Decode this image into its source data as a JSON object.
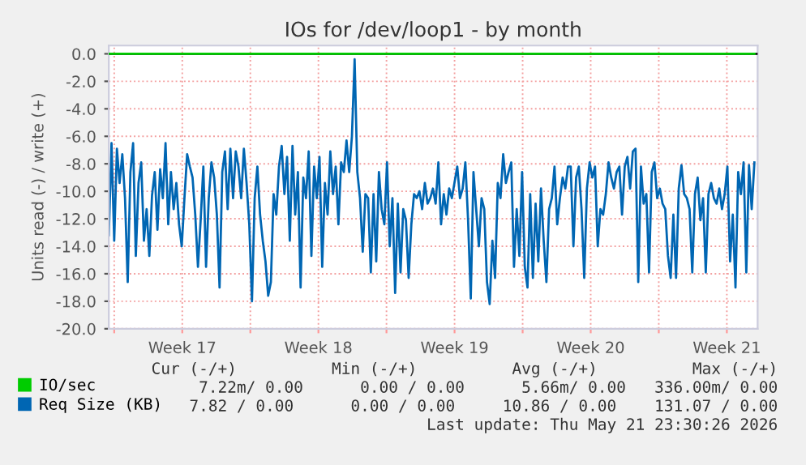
{
  "chart_data": {
    "type": "line",
    "title": "IOs for /dev/loop1 - by month",
    "ylabel": "Units read (-) / write (+)",
    "x": [
      "2026-04-18T17:20",
      "2026-04-18T20:40",
      "2026-04-19T00:00",
      "2026-04-19T03:20",
      "2026-04-19T06:40",
      "2026-04-19T10:00",
      "2026-04-19T13:20",
      "2026-04-19T16:40",
      "2026-04-19T20:00",
      "2026-04-19T23:20",
      "2026-04-20T02:40",
      "2026-04-20T06:00",
      "2026-04-20T09:20",
      "2026-04-20T12:40",
      "2026-04-20T16:00",
      "2026-04-20T19:20",
      "2026-04-20T22:40",
      "2026-04-21T02:00",
      "2026-04-21T05:20",
      "2026-04-21T08:40",
      "2026-04-21T12:00",
      "2026-04-21T15:20",
      "2026-04-21T18:40",
      "2026-04-21T22:00",
      "2026-04-22T01:20",
      "2026-04-22T04:40",
      "2026-04-22T08:00",
      "2026-04-22T11:20",
      "2026-04-22T14:40",
      "2026-04-22T18:00",
      "2026-04-22T21:20",
      "2026-04-23T00:40",
      "2026-04-23T04:00",
      "2026-04-23T07:20",
      "2026-04-23T10:40",
      "2026-04-23T14:00",
      "2026-04-23T17:20",
      "2026-04-23T20:40",
      "2026-04-24T00:00",
      "2026-04-24T03:20",
      "2026-04-24T06:40",
      "2026-04-24T10:00",
      "2026-04-24T13:20",
      "2026-04-24T16:40",
      "2026-04-24T20:00",
      "2026-04-24T23:20",
      "2026-04-25T02:40",
      "2026-04-25T06:00",
      "2026-04-25T09:20",
      "2026-04-25T12:40",
      "2026-04-25T16:00",
      "2026-04-25T19:20",
      "2026-04-25T22:40",
      "2026-04-26T02:00",
      "2026-04-26T05:20",
      "2026-04-26T08:40",
      "2026-04-26T12:00",
      "2026-04-26T15:20",
      "2026-04-26T18:40",
      "2026-04-26T22:00",
      "2026-04-27T01:20",
      "2026-04-27T04:40",
      "2026-04-27T08:00",
      "2026-04-27T11:20",
      "2026-04-27T14:40",
      "2026-04-27T18:00",
      "2026-04-27T21:20",
      "2026-04-28T00:40",
      "2026-04-28T04:00",
      "2026-04-28T07:20",
      "2026-04-28T10:40",
      "2026-04-28T14:00",
      "2026-04-28T17:20",
      "2026-04-28T20:40",
      "2026-04-29T00:00",
      "2026-04-29T03:20",
      "2026-04-29T06:40",
      "2026-04-29T10:00",
      "2026-04-29T13:20",
      "2026-04-29T16:40",
      "2026-04-29T20:00",
      "2026-04-29T23:20",
      "2026-04-30T02:40",
      "2026-04-30T06:00",
      "2026-04-30T09:20",
      "2026-04-30T12:40",
      "2026-04-30T16:00",
      "2026-04-30T19:20",
      "2026-04-30T22:40",
      "2026-05-01T02:00",
      "2026-05-01T05:20",
      "2026-05-01T08:40",
      "2026-05-01T12:00",
      "2026-05-01T15:20",
      "2026-05-01T18:40",
      "2026-05-01T22:00",
      "2026-05-02T01:20",
      "2026-05-02T04:40",
      "2026-05-02T08:00",
      "2026-05-02T11:20",
      "2026-05-02T14:40",
      "2026-05-02T18:00",
      "2026-05-02T21:20",
      "2026-05-03T00:40",
      "2026-05-03T04:00",
      "2026-05-03T07:20",
      "2026-05-03T10:40",
      "2026-05-03T14:00",
      "2026-05-03T17:20",
      "2026-05-03T20:40",
      "2026-05-04T00:00",
      "2026-05-04T03:20",
      "2026-05-04T06:40",
      "2026-05-04T10:00",
      "2026-05-04T13:20",
      "2026-05-04T16:40",
      "2026-05-04T20:00",
      "2026-05-04T23:20",
      "2026-05-05T02:40",
      "2026-05-05T06:00",
      "2026-05-05T09:20",
      "2026-05-05T12:40",
      "2026-05-05T16:00",
      "2026-05-05T19:20",
      "2026-05-05T22:40",
      "2026-05-06T02:00",
      "2026-05-06T05:20",
      "2026-05-06T08:40",
      "2026-05-06T15:20",
      "2026-05-06T18:40",
      "2026-05-06T22:00",
      "2026-05-07T01:20",
      "2026-05-07T04:40",
      "2026-05-07T08:00",
      "2026-05-07T11:20",
      "2026-05-07T14:40",
      "2026-05-07T18:00",
      "2026-05-07T21:20",
      "2026-05-08T00:40",
      "2026-05-08T04:00",
      "2026-05-08T07:20",
      "2026-05-08T10:40",
      "2026-05-08T14:00",
      "2026-05-08T17:20",
      "2026-05-08T20:40",
      "2026-05-09T00:00",
      "2026-05-09T03:20",
      "2026-05-09T06:40",
      "2026-05-09T10:00",
      "2026-05-09T13:20",
      "2026-05-09T16:40",
      "2026-05-09T20:00",
      "2026-05-09T23:20",
      "2026-05-10T02:40",
      "2026-05-10T06:00",
      "2026-05-10T09:20",
      "2026-05-10T12:40",
      "2026-05-10T16:00",
      "2026-05-10T19:20",
      "2026-05-10T22:40",
      "2026-05-11T02:00",
      "2026-05-11T05:20",
      "2026-05-11T08:40",
      "2026-05-11T12:00",
      "2026-05-11T15:20",
      "2026-05-11T18:40",
      "2026-05-11T22:00",
      "2026-05-12T01:20",
      "2026-05-12T04:40",
      "2026-05-12T08:00",
      "2026-05-12T11:20",
      "2026-05-12T14:40",
      "2026-05-12T18:00",
      "2026-05-12T21:20",
      "2026-05-13T00:40",
      "2026-05-13T04:00",
      "2026-05-13T07:20",
      "2026-05-13T10:40",
      "2026-05-13T14:00",
      "2026-05-13T17:20",
      "2026-05-13T20:40",
      "2026-05-14T00:00",
      "2026-05-14T03:20",
      "2026-05-14T06:40",
      "2026-05-14T10:00",
      "2026-05-14T13:20",
      "2026-05-14T16:40",
      "2026-05-14T20:00",
      "2026-05-14T23:20",
      "2026-05-15T02:40",
      "2026-05-15T06:00",
      "2026-05-15T09:20",
      "2026-05-15T12:40",
      "2026-05-15T16:00",
      "2026-05-15T19:20",
      "2026-05-15T22:40",
      "2026-05-16T02:00",
      "2026-05-16T05:20",
      "2026-05-16T08:40",
      "2026-05-16T12:00",
      "2026-05-16T15:20",
      "2026-05-16T18:40",
      "2026-05-16T22:00",
      "2026-05-17T01:20",
      "2026-05-17T04:40",
      "2026-05-17T08:00",
      "2026-05-17T11:20",
      "2026-05-17T14:40",
      "2026-05-17T18:00",
      "2026-05-17T21:20",
      "2026-05-18T00:40",
      "2026-05-18T04:00",
      "2026-05-18T07:20",
      "2026-05-18T10:40",
      "2026-05-18T14:00",
      "2026-05-18T17:20",
      "2026-05-18T20:40",
      "2026-05-19T00:00",
      "2026-05-19T03:20",
      "2026-05-19T06:40",
      "2026-05-19T10:00",
      "2026-05-19T13:20",
      "2026-05-19T16:40",
      "2026-05-19T20:00",
      "2026-05-19T23:20",
      "2026-05-20T02:40",
      "2026-05-20T06:00",
      "2026-05-20T09:20",
      "2026-05-20T12:40",
      "2026-05-20T16:00",
      "2026-05-20T19:20",
      "2026-05-20T22:40",
      "2026-05-21T02:00",
      "2026-05-21T05:20",
      "2026-05-21T08:40",
      "2026-05-21T12:00",
      "2026-05-21T15:20",
      "2026-05-21T18:40",
      "2026-05-21T22:00"
    ],
    "series": [
      {
        "name": "IO/sec",
        "color": "#00cc00",
        "x": [
          "2026-04-18T17:20",
          "2026-05-21T22:00"
        ],
        "values": [
          0,
          0
        ]
      },
      {
        "name": "Req Size (KB)",
        "color": "#0066b3",
        "values": [
          -13.2,
          -6.5,
          -13.6,
          -6.9,
          -9.4,
          -7.3,
          -10.5,
          -16.6,
          -8.6,
          -6.5,
          -14.7,
          -9.4,
          -7.9,
          -13.6,
          -11.3,
          -14.7,
          -10.3,
          -8.6,
          -12.8,
          -8.4,
          -10.5,
          -6.5,
          -12.4,
          -8.6,
          -11.3,
          -9.4,
          -12.4,
          -14.0,
          -10.5,
          -7.3,
          -8.2,
          -9.0,
          -11.7,
          -15.5,
          -12.1,
          -8.2,
          -15.5,
          -10.5,
          -7.9,
          -9.0,
          -11.7,
          -17.0,
          -8.6,
          -7.1,
          -11.3,
          -6.9,
          -10.5,
          -7.1,
          -8.2,
          -10.5,
          -6.9,
          -9.4,
          -12.4,
          -18.0,
          -10.5,
          -8.2,
          -11.7,
          -13.6,
          -15.1,
          -17.6,
          -16.6,
          -10.2,
          -11.7,
          -8.2,
          -6.7,
          -10.2,
          -7.5,
          -13.6,
          -6.7,
          -11.7,
          -8.6,
          -17.0,
          -9.0,
          -10.5,
          -7.1,
          -14.7,
          -8.2,
          -10.5,
          -7.5,
          -15.5,
          -9.4,
          -11.7,
          -7.1,
          -10.2,
          -8.2,
          -12.4,
          -7.9,
          -8.6,
          -6.3,
          -8.6,
          -6.0,
          -0.4,
          -8.6,
          -10.5,
          -14.4,
          -10.2,
          -10.5,
          -15.9,
          -10.2,
          -15.1,
          -8.6,
          -11.3,
          -12.4,
          -7.9,
          -14.0,
          -10.5,
          -17.4,
          -10.9,
          -15.9,
          -11.3,
          -12.1,
          -16.3,
          -12.4,
          -10.2,
          -10.5,
          -10.0,
          -11.3,
          -9.4,
          -10.9,
          -10.5,
          -9.8,
          -10.9,
          -7.9,
          -12.4,
          -10.2,
          -11.7,
          -9.8,
          -10.5,
          -8.2,
          -10.5,
          -9.8,
          -7.9,
          -12.1,
          -17.8,
          -8.6,
          -11.3,
          -14.0,
          -10.5,
          -11.3,
          -16.6,
          -18.2,
          -13.6,
          -16.3,
          -9.4,
          -10.5,
          -7.3,
          -9.4,
          -8.6,
          -7.9,
          -15.5,
          -11.3,
          -14.7,
          -8.6,
          -15.5,
          -17.0,
          -10.2,
          -16.3,
          -10.9,
          -15.1,
          -9.8,
          -13.6,
          -16.6,
          -11.3,
          -10.5,
          -8.2,
          -12.4,
          -10.5,
          -9.0,
          -9.8,
          -8.2,
          -8.2,
          -14.0,
          -9.0,
          -8.2,
          -11.3,
          -16.3,
          -9.8,
          -7.9,
          -9.0,
          -8.2,
          -14.0,
          -11.3,
          -11.7,
          -10.2,
          -7.9,
          -9.0,
          -9.8,
          -8.6,
          -8.2,
          -11.7,
          -8.2,
          -7.5,
          -9.8,
          -7.1,
          -6.9,
          -16.6,
          -8.2,
          -10.9,
          -10.2,
          -15.9,
          -8.6,
          -7.9,
          -10.5,
          -9.8,
          -10.9,
          -11.3,
          -14.7,
          -16.3,
          -11.7,
          -16.3,
          -9.8,
          -8.1,
          -10.2,
          -10.5,
          -11.3,
          -15.9,
          -10.2,
          -9.0,
          -12.1,
          -10.5,
          -15.9,
          -10.2,
          -9.4,
          -10.5,
          -10.9,
          -9.8,
          -11.3,
          -10.2,
          -8.2,
          -15.1,
          -11.7,
          -17.0,
          -8.6,
          -10.2,
          -7.9,
          -15.9,
          -8.1,
          -11.3,
          -7.9
        ]
      }
    ],
    "xlim": [
      "2026-04-18T17:20",
      "2026-05-22T02:00"
    ],
    "xticks": [
      {
        "value": "2026-04-19",
        "label": null
      },
      {
        "value": "2026-04-22T12:00",
        "label": "Week 17"
      },
      {
        "value": "2026-04-26",
        "label": null
      },
      {
        "value": "2026-04-29T12:00",
        "label": "Week 18"
      },
      {
        "value": "2026-05-03",
        "label": null
      },
      {
        "value": "2026-05-06T12:00",
        "label": "Week 19"
      },
      {
        "value": "2026-05-10",
        "label": null
      },
      {
        "value": "2026-05-13T12:00",
        "label": "Week 20"
      },
      {
        "value": "2026-05-17",
        "label": null
      },
      {
        "value": "2026-05-20T12:00",
        "label": "Week 21"
      }
    ],
    "ylim": [
      -20,
      0.6
    ],
    "yticks": [
      {
        "value": -20,
        "label": "-20.0"
      },
      {
        "value": -18,
        "label": "-18.0"
      },
      {
        "value": -16,
        "label": "-16.0"
      },
      {
        "value": -14,
        "label": "-14.0"
      },
      {
        "value": -12,
        "label": "-12.0"
      },
      {
        "value": -10,
        "label": "-10.0"
      },
      {
        "value": -8,
        "label": "-8.0"
      },
      {
        "value": -6,
        "label": "-6.0"
      },
      {
        "value": -4,
        "label": "-4.0"
      },
      {
        "value": -2,
        "label": "-2.0"
      },
      {
        "value": 0,
        "label": "0.0"
      }
    ],
    "ref_lines": [
      {
        "axis": "y",
        "value": 0,
        "color": "#000000"
      }
    ],
    "grid": true,
    "legend": "bottom left",
    "annotations": [
      "Cur (-/+)          Min (-/+)          Avg (-/+)          Max (-/+)",
      "7.22m/ 0.00      0.00 / 0.00      5.66m/ 0.00   336.00m/ 0.00",
      "7.82 / 0.00      0.00 / 0.00     10.86 / 0.00    131.07 / 0.00",
      "Last update: Thu May 21 23:30:26 2026"
    ]
  }
}
